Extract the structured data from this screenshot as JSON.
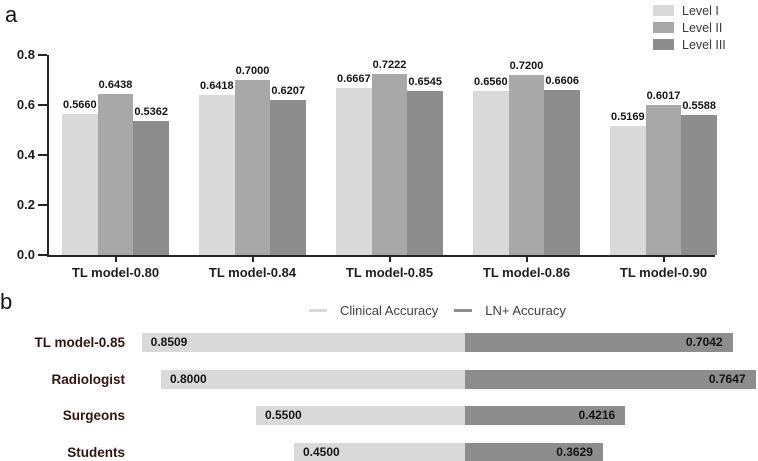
{
  "panels": {
    "a": {
      "letter": "a"
    },
    "b": {
      "letter": "b"
    }
  },
  "colors": {
    "level1": "#d9d9d9",
    "level2": "#a8a8a8",
    "level3": "#8d8d8d",
    "clinical": "#d9d9d9",
    "ln_plus": "#8d8d8d",
    "axis": "#262323"
  },
  "chart_data": [
    {
      "type": "bar",
      "panel": "a",
      "title": "",
      "xlabel": "",
      "ylabel": "",
      "categories": [
        "TL model-0.80",
        "TL model-0.84",
        "TL model-0.85",
        "TL model-0.86",
        "TL model-0.90"
      ],
      "series": [
        {
          "name": "Level I",
          "color": "#d9d9d9",
          "values": [
            0.566,
            0.6418,
            0.6667,
            0.656,
            0.5169
          ]
        },
        {
          "name": "Level II",
          "color": "#a8a8a8",
          "values": [
            0.6438,
            0.7,
            0.7222,
            0.72,
            0.6017
          ]
        },
        {
          "name": "Level III",
          "color": "#8d8d8d",
          "values": [
            0.5362,
            0.6207,
            0.6545,
            0.6606,
            0.5588
          ]
        }
      ],
      "ylim": [
        0.0,
        0.8
      ],
      "yticks": [
        "0.0",
        "0.2",
        "0.4",
        "0.6",
        "0.8"
      ],
      "value_labels": true,
      "value_label_decimals": 4,
      "grid": false,
      "legend_position": "top-right"
    },
    {
      "type": "diverging-bar",
      "panel": "b",
      "title": "",
      "categories": [
        "TL model-0.85",
        "Radiologist",
        "Surgeons",
        "Students"
      ],
      "series": [
        {
          "name": "Clinical Accuracy",
          "side": "left",
          "color": "#d9d9d9",
          "values": [
            0.8509,
            0.8,
            0.55,
            0.45
          ]
        },
        {
          "name": "LN+ Accuracy",
          "side": "right",
          "color": "#8d8d8d",
          "values": [
            0.7042,
            0.7647,
            0.4216,
            0.3629
          ]
        }
      ],
      "value_labels": true,
      "value_label_decimals": 4,
      "grid": false,
      "legend_position": "top-center"
    }
  ]
}
